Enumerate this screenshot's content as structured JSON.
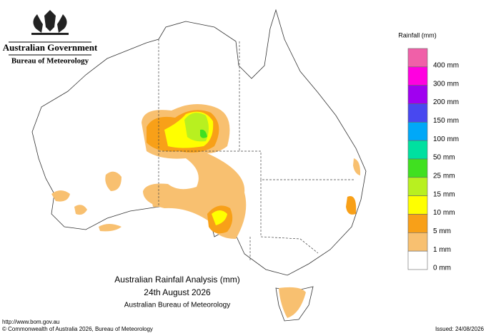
{
  "header": {
    "government": "Australian Government",
    "agency": "Bureau of Meteorology"
  },
  "legend": {
    "title": "Rainfall (mm)",
    "items": [
      {
        "label": "400 mm",
        "color": "#f060a8"
      },
      {
        "label": "300 mm",
        "color": "#ff00e0"
      },
      {
        "label": "200 mm",
        "color": "#a000f0"
      },
      {
        "label": "150 mm",
        "color": "#4848f0"
      },
      {
        "label": "100 mm",
        "color": "#00a8f8"
      },
      {
        "label": "50 mm",
        "color": "#00e0a0"
      },
      {
        "label": "25 mm",
        "color": "#40e020"
      },
      {
        "label": "15 mm",
        "color": "#b8f020"
      },
      {
        "label": "10 mm",
        "color": "#ffff00"
      },
      {
        "label": "5 mm",
        "color": "#f8a018"
      },
      {
        "label": "1 mm",
        "color": "#f8c070"
      },
      {
        "label": "0 mm",
        "color": "#ffffff"
      }
    ]
  },
  "map_title": {
    "line1": "Australian Rainfall Analysis (mm)",
    "line2": "24th August 2026",
    "line3": "Australian Bureau of Meteorology"
  },
  "footer": {
    "url": "http://www.bom.gov.au",
    "copyright": "© Commonwealth of Australia 2026, Bureau of Meteorology",
    "issued": "Issued: 24/08/2026"
  }
}
